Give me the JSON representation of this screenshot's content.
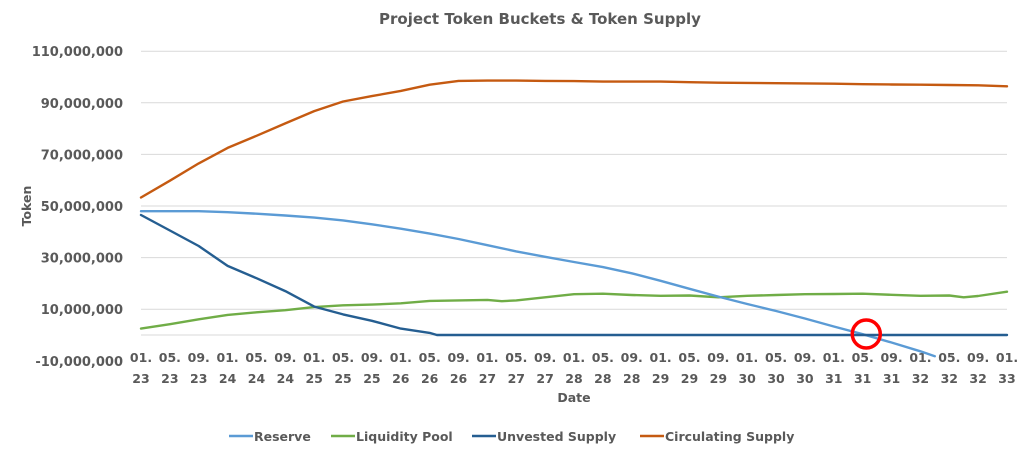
{
  "chart_data": {
    "type": "line",
    "title": "Project Token Buckets & Token Supply",
    "xlabel": "Date",
    "ylabel": "Token",
    "ylim": [
      -10000000,
      110000000
    ],
    "yticks": [
      110000000,
      90000000,
      70000000,
      50000000,
      30000000,
      10000000,
      -10000000
    ],
    "ytick_labels": [
      "110,000,000",
      "90,000,000",
      "70,000,000",
      "50,000,000",
      "30,000,000",
      "10,000,000",
      "-10,000,000"
    ],
    "grid": true,
    "legend_position": "bottom",
    "x_period": "monthly",
    "x_start": "01.23",
    "x_end": "01.33",
    "xtick_labels": [
      [
        "01.",
        "23"
      ],
      [
        "05.",
        "23"
      ],
      [
        "09.",
        "23"
      ],
      [
        "01.",
        "24"
      ],
      [
        "05.",
        "24"
      ],
      [
        "09.",
        "24"
      ],
      [
        "01.",
        "25"
      ],
      [
        "05.",
        "25"
      ],
      [
        "09.",
        "25"
      ],
      [
        "01.",
        "26"
      ],
      [
        "05.",
        "26"
      ],
      [
        "09.",
        "26"
      ],
      [
        "01.",
        "27"
      ],
      [
        "05.",
        "27"
      ],
      [
        "09.",
        "27"
      ],
      [
        "01.",
        "28"
      ],
      [
        "05.",
        "28"
      ],
      [
        "09.",
        "28"
      ],
      [
        "01.",
        "29"
      ],
      [
        "05.",
        "29"
      ],
      [
        "09.",
        "29"
      ],
      [
        "01.",
        "30"
      ],
      [
        "05.",
        "30"
      ],
      [
        "09.",
        "30"
      ],
      [
        "01.",
        "31"
      ],
      [
        "05.",
        "31"
      ],
      [
        "09.",
        "31"
      ],
      [
        "01.",
        "32"
      ],
      [
        "05.",
        "32"
      ],
      [
        "09.",
        "32"
      ],
      [
        "01.",
        "33"
      ]
    ],
    "series_keypoints_note": "values in millions of tokens at month index (0 = 01.23, 120 = 01.33)",
    "series": [
      {
        "name": "Reserve",
        "color": "#5b9bd5",
        "keypoints": [
          [
            0,
            48
          ],
          [
            8,
            48
          ],
          [
            12,
            47.6
          ],
          [
            16,
            47.0
          ],
          [
            20,
            46.3
          ],
          [
            24,
            45.5
          ],
          [
            28,
            44.4
          ],
          [
            32,
            42.9
          ],
          [
            36,
            41.2
          ],
          [
            40,
            39.3
          ],
          [
            44,
            37.2
          ],
          [
            48,
            34.8
          ],
          [
            52,
            32.4
          ],
          [
            56,
            30.3
          ],
          [
            60,
            28.3
          ],
          [
            64,
            26.3
          ],
          [
            68,
            23.9
          ],
          [
            72,
            21.0
          ],
          [
            76,
            17.9
          ],
          [
            80,
            14.9
          ],
          [
            84,
            12.0
          ],
          [
            88,
            9.3
          ],
          [
            92,
            6.4
          ],
          [
            96,
            3.3
          ],
          [
            100,
            0.3
          ],
          [
            104,
            -2.9
          ],
          [
            108,
            -6.3
          ],
          [
            110,
            -8.2
          ]
        ]
      },
      {
        "name": "Liquidity Pool",
        "color": "#70ad47",
        "keypoints": [
          [
            0,
            2.5
          ],
          [
            4,
            4.2
          ],
          [
            8,
            6.1
          ],
          [
            12,
            7.8
          ],
          [
            16,
            8.8
          ],
          [
            20,
            9.6
          ],
          [
            24,
            10.8
          ],
          [
            28,
            11.5
          ],
          [
            32,
            11.8
          ],
          [
            36,
            12.3
          ],
          [
            40,
            13.2
          ],
          [
            44,
            13.4
          ],
          [
            48,
            13.6
          ],
          [
            50,
            13.1
          ],
          [
            52,
            13.4
          ],
          [
            56,
            14.6
          ],
          [
            60,
            15.8
          ],
          [
            64,
            16.0
          ],
          [
            68,
            15.5
          ],
          [
            72,
            15.2
          ],
          [
            76,
            15.3
          ],
          [
            80,
            14.6
          ],
          [
            84,
            15.2
          ],
          [
            88,
            15.5
          ],
          [
            92,
            15.8
          ],
          [
            96,
            15.9
          ],
          [
            100,
            16.0
          ],
          [
            104,
            15.6
          ],
          [
            108,
            15.2
          ],
          [
            112,
            15.3
          ],
          [
            114,
            14.6
          ],
          [
            116,
            15.1
          ],
          [
            120,
            16.8
          ]
        ]
      },
      {
        "name": "Unvested Supply",
        "color": "#255e91",
        "keypoints": [
          [
            0,
            46.5
          ],
          [
            4,
            40.5
          ],
          [
            8,
            34.5
          ],
          [
            12,
            26.8
          ],
          [
            16,
            22.0
          ],
          [
            20,
            17.0
          ],
          [
            24,
            11.0
          ],
          [
            28,
            8.0
          ],
          [
            32,
            5.5
          ],
          [
            36,
            2.5
          ],
          [
            40,
            0.8
          ],
          [
            41,
            0
          ],
          [
            120,
            0
          ]
        ]
      },
      {
        "name": "Circulating Supply",
        "color": "#c55a11",
        "keypoints": [
          [
            0,
            53.3
          ],
          [
            4,
            59.8
          ],
          [
            8,
            66.5
          ],
          [
            12,
            72.5
          ],
          [
            16,
            77.2
          ],
          [
            20,
            82.0
          ],
          [
            24,
            86.8
          ],
          [
            28,
            90.5
          ],
          [
            32,
            92.6
          ],
          [
            36,
            94.6
          ],
          [
            40,
            97.0
          ],
          [
            44,
            98.5
          ],
          [
            48,
            98.6
          ],
          [
            52,
            98.6
          ],
          [
            56,
            98.5
          ],
          [
            60,
            98.4
          ],
          [
            64,
            98.2
          ],
          [
            68,
            98.2
          ],
          [
            72,
            98.2
          ],
          [
            76,
            98.0
          ],
          [
            80,
            97.8
          ],
          [
            84,
            97.7
          ],
          [
            88,
            97.6
          ],
          [
            92,
            97.5
          ],
          [
            96,
            97.4
          ],
          [
            100,
            97.2
          ],
          [
            104,
            97.1
          ],
          [
            108,
            97.0
          ],
          [
            112,
            96.9
          ],
          [
            116,
            96.8
          ],
          [
            120,
            96.4
          ]
        ]
      }
    ],
    "annotation": "red-circle-marker"
  }
}
